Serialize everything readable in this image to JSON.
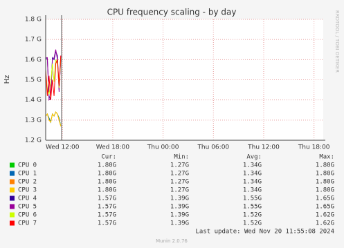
{
  "chart_data": {
    "type": "line",
    "title": "CPU frequency scaling - by day",
    "y_label": "Hz",
    "side_text": "RRDTOOL / TOBI OETIKER",
    "x": [
      10.0,
      10.2,
      10.4,
      10.6,
      10.8,
      11.0,
      11.2,
      11.4,
      11.6,
      11.8
    ],
    "xlim": [
      10.0,
      43.1
    ],
    "xticks": [
      {
        "value": 12,
        "label": "Wed 12:00"
      },
      {
        "value": 18,
        "label": "Wed 18:00"
      },
      {
        "value": 24,
        "label": "Thu 00:00"
      },
      {
        "value": 30,
        "label": "Thu 06:00"
      },
      {
        "value": 36,
        "label": "Thu 12:00"
      },
      {
        "value": 42,
        "label": "Thu 18:00"
      }
    ],
    "ylim": [
      1.2,
      1.8
    ],
    "yticks": [
      {
        "value": 1.2,
        "label": "1.2 G"
      },
      {
        "value": 1.3,
        "label": "1.3 G"
      },
      {
        "value": 1.4,
        "label": "1.4 G"
      },
      {
        "value": 1.5,
        "label": "1.5 G"
      },
      {
        "value": 1.6,
        "label": "1.6 G"
      },
      {
        "value": 1.7,
        "label": "1.7 G"
      },
      {
        "value": 1.8,
        "label": "1.8 G"
      }
    ],
    "grid": true,
    "series": [
      {
        "name": "CPU 0",
        "color": "#00cc00",
        "values": [
          1.32,
          1.33,
          1.31,
          1.29,
          1.33,
          1.32,
          1.34,
          1.33,
          1.31,
          1.27
        ]
      },
      {
        "name": "CPU 1",
        "color": "#0066b3",
        "values": [
          1.32,
          1.33,
          1.31,
          1.29,
          1.33,
          1.32,
          1.34,
          1.33,
          1.31,
          1.27
        ]
      },
      {
        "name": "CPU 2",
        "color": "#ff8000",
        "values": [
          1.32,
          1.33,
          1.3,
          1.29,
          1.33,
          1.32,
          1.34,
          1.33,
          1.3,
          1.27
        ]
      },
      {
        "name": "CPU 3",
        "color": "#ffcc00",
        "values": [
          1.32,
          1.33,
          1.3,
          1.29,
          1.33,
          1.32,
          1.34,
          1.33,
          1.3,
          1.27
        ]
      },
      {
        "name": "CPU 4",
        "color": "#330099",
        "values": [
          1.61,
          1.6,
          1.42,
          1.4,
          1.61,
          1.6,
          1.64,
          1.62,
          1.45,
          1.6
        ]
      },
      {
        "name": "CPU 5",
        "color": "#990099",
        "values": [
          1.61,
          1.61,
          1.4,
          1.41,
          1.6,
          1.61,
          1.65,
          1.6,
          1.44,
          1.62
        ]
      },
      {
        "name": "CPU 6",
        "color": "#ccff00",
        "values": [
          1.55,
          1.45,
          1.43,
          1.48,
          1.58,
          1.49,
          1.6,
          1.58,
          1.46,
          1.61
        ]
      },
      {
        "name": "CPU 7",
        "color": "#ff0000",
        "values": [
          1.55,
          1.42,
          1.52,
          1.4,
          1.5,
          1.42,
          1.58,
          1.6,
          1.47,
          1.62
        ]
      }
    ],
    "stats": {
      "headers": [
        "Cur:",
        "Min:",
        "Avg:",
        "Max:"
      ],
      "rows": [
        [
          "1.80G",
          "1.27G",
          "1.34G",
          "1.80G"
        ],
        [
          "1.80G",
          "1.27G",
          "1.34G",
          "1.80G"
        ],
        [
          "1.80G",
          "1.27G",
          "1.34G",
          "1.80G"
        ],
        [
          "1.80G",
          "1.27G",
          "1.34G",
          "1.80G"
        ],
        [
          "1.57G",
          "1.39G",
          "1.55G",
          "1.65G"
        ],
        [
          "1.57G",
          "1.39G",
          "1.55G",
          "1.65G"
        ],
        [
          "1.57G",
          "1.39G",
          "1.52G",
          "1.62G"
        ],
        [
          "1.57G",
          "1.39G",
          "1.52G",
          "1.62G"
        ]
      ]
    },
    "last_update": "Last update: Wed Nov 20 11:55:08 2024",
    "footer": "Munin 2.0.76"
  }
}
